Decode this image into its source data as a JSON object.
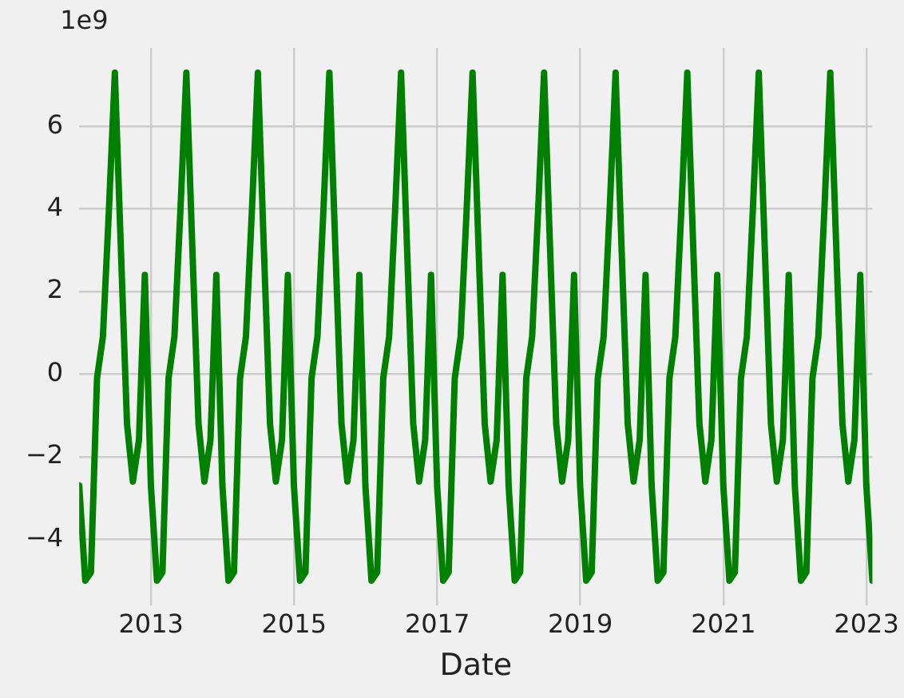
{
  "chart_data": {
    "type": "line",
    "xlabel": "Date",
    "annotations": [
      "1e9"
    ],
    "grid": true,
    "legend": false,
    "marker": "none",
    "line_style": "solid",
    "xlim": [
      "2011-12-31",
      "2023-01-31"
    ],
    "xticks": [
      {
        "value": "2013-01-01",
        "label": "2013"
      },
      {
        "value": "2015-01-01",
        "label": "2015"
      },
      {
        "value": "2017-01-01",
        "label": "2017"
      },
      {
        "value": "2019-01-01",
        "label": "2019"
      },
      {
        "value": "2021-01-01",
        "label": "2021"
      },
      {
        "value": "2023-01-01",
        "label": "2023"
      }
    ],
    "ylim": [
      -5.6,
      7.9
    ],
    "yticks": [
      {
        "value": -4,
        "label": "−4"
      },
      {
        "value": -2,
        "label": "−2"
      },
      0,
      2,
      4,
      6
    ],
    "series": [
      {
        "color": "#008000",
        "x": [
          "2011-12-31",
          "2012-01-31",
          "2012-02-29",
          "2012-03-31",
          "2012-04-30",
          "2012-05-31",
          "2012-06-30",
          "2012-07-31",
          "2012-08-31",
          "2012-09-30",
          "2012-10-31",
          "2012-11-30",
          "2012-12-31",
          "2013-01-31",
          "2013-02-28",
          "2013-03-31",
          "2013-04-30",
          "2013-05-31",
          "2013-06-30",
          "2013-07-31",
          "2013-08-31",
          "2013-09-30",
          "2013-10-31",
          "2013-11-30",
          "2013-12-31",
          "2014-01-31",
          "2014-02-28",
          "2014-03-31",
          "2014-04-30",
          "2014-05-31",
          "2014-06-30",
          "2014-07-31",
          "2014-08-31",
          "2014-09-30",
          "2014-10-31",
          "2014-11-30",
          "2014-12-31",
          "2015-01-31",
          "2015-02-28",
          "2015-03-31",
          "2015-04-30",
          "2015-05-31",
          "2015-06-30",
          "2015-07-31",
          "2015-08-31",
          "2015-09-30",
          "2015-10-31",
          "2015-11-30",
          "2015-12-31",
          "2016-01-31",
          "2016-02-29",
          "2016-03-31",
          "2016-04-30",
          "2016-05-31",
          "2016-06-30",
          "2016-07-31",
          "2016-08-31",
          "2016-09-30",
          "2016-10-31",
          "2016-11-30",
          "2016-12-31",
          "2017-01-31",
          "2017-02-28",
          "2017-03-31",
          "2017-04-30",
          "2017-05-31",
          "2017-06-30",
          "2017-07-31",
          "2017-08-31",
          "2017-09-30",
          "2017-10-31",
          "2017-11-30",
          "2017-12-31",
          "2018-01-31",
          "2018-02-28",
          "2018-03-31",
          "2018-04-30",
          "2018-05-31",
          "2018-06-30",
          "2018-07-31",
          "2018-08-31",
          "2018-09-30",
          "2018-10-31",
          "2018-11-30",
          "2018-12-31",
          "2019-01-31",
          "2019-02-28",
          "2019-03-31",
          "2019-04-30",
          "2019-05-31",
          "2019-06-30",
          "2019-07-31",
          "2019-08-31",
          "2019-09-30",
          "2019-10-31",
          "2019-11-30",
          "2019-12-31",
          "2020-01-31",
          "2020-02-29",
          "2020-03-31",
          "2020-04-30",
          "2020-05-31",
          "2020-06-30",
          "2020-07-31",
          "2020-08-31",
          "2020-09-30",
          "2020-10-31",
          "2020-11-30",
          "2020-12-31",
          "2021-01-31",
          "2021-02-28",
          "2021-03-31",
          "2021-04-30",
          "2021-05-31",
          "2021-06-30",
          "2021-07-31",
          "2021-08-31",
          "2021-09-30",
          "2021-10-31",
          "2021-11-30",
          "2021-12-31",
          "2022-01-31",
          "2022-02-28",
          "2022-03-31",
          "2022-04-30",
          "2022-05-31",
          "2022-06-30",
          "2022-07-31",
          "2022-08-31",
          "2022-09-30",
          "2022-10-31",
          "2022-11-30",
          "2022-12-31",
          "2023-01-31"
        ],
        "values": [
          -2.7,
          -5.0,
          -4.8,
          -0.1,
          0.9,
          4.0,
          7.3,
          3.0,
          -1.2,
          -2.6,
          -1.6,
          2.4,
          -2.7,
          -5.0,
          -4.8,
          -0.1,
          0.9,
          4.0,
          7.3,
          3.0,
          -1.2,
          -2.6,
          -1.6,
          2.4,
          -2.7,
          -5.0,
          -4.8,
          -0.1,
          0.9,
          4.0,
          7.3,
          3.0,
          -1.2,
          -2.6,
          -1.6,
          2.4,
          -2.7,
          -5.0,
          -4.8,
          -0.1,
          0.9,
          4.0,
          7.3,
          3.0,
          -1.2,
          -2.6,
          -1.6,
          2.4,
          -2.7,
          -5.0,
          -4.8,
          -0.1,
          0.9,
          4.0,
          7.3,
          3.0,
          -1.2,
          -2.6,
          -1.6,
          2.4,
          -2.7,
          -5.0,
          -4.8,
          -0.1,
          0.9,
          4.0,
          7.3,
          3.0,
          -1.2,
          -2.6,
          -1.6,
          2.4,
          -2.7,
          -5.0,
          -4.8,
          -0.1,
          0.9,
          4.0,
          7.3,
          3.0,
          -1.2,
          -2.6,
          -1.6,
          2.4,
          -2.7,
          -5.0,
          -4.8,
          -0.1,
          0.9,
          4.0,
          7.3,
          3.0,
          -1.2,
          -2.6,
          -1.6,
          2.4,
          -2.7,
          -5.0,
          -4.8,
          -0.1,
          0.9,
          4.0,
          7.3,
          3.0,
          -1.2,
          -2.6,
          -1.6,
          2.4,
          -2.7,
          -5.0,
          -4.8,
          -0.1,
          0.9,
          4.0,
          7.3,
          3.0,
          -1.2,
          -2.6,
          -1.6,
          2.4,
          -2.7,
          -5.0,
          -4.8,
          -0.1,
          0.9,
          4.0,
          7.3,
          3.0,
          -1.2,
          -2.6,
          -1.6,
          2.4,
          -2.7,
          -5.0
        ]
      }
    ]
  }
}
